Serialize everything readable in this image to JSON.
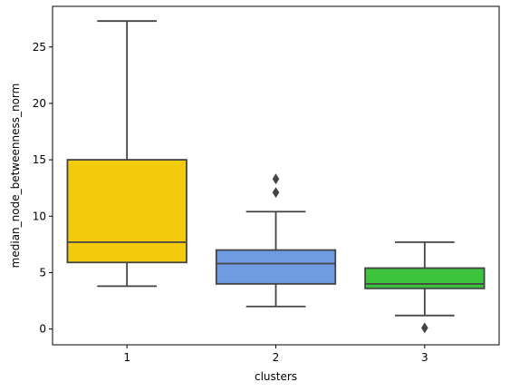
{
  "chart_data": {
    "type": "box",
    "title": "",
    "xlabel": "clusters",
    "ylabel": "median_node_betweenness_norm",
    "categories": [
      "1",
      "2",
      "3"
    ],
    "ylim": [
      -1.4,
      28.6
    ],
    "yticks": [
      0,
      5,
      10,
      15,
      20,
      25
    ],
    "ytick_labels": [
      "0",
      "5",
      "10",
      "15",
      "20",
      "25"
    ],
    "grid": false,
    "boxes": [
      {
        "category": "1",
        "color": "#F2CC0C",
        "whisker_low": 3.8,
        "q1": 5.9,
        "median": 7.7,
        "q3": 15.0,
        "whisker_high": 27.3,
        "outliers": []
      },
      {
        "category": "2",
        "color": "#6F9BE3",
        "whisker_low": 2.0,
        "q1": 4.0,
        "median": 5.8,
        "q3": 7.0,
        "whisker_high": 10.4,
        "outliers": [
          12.1,
          13.3
        ]
      },
      {
        "category": "3",
        "color": "#3CC43C",
        "whisker_low": 1.2,
        "q1": 3.6,
        "median": 4.0,
        "q3": 5.4,
        "whisker_high": 7.7,
        "outliers": [
          0.1
        ]
      }
    ]
  }
}
